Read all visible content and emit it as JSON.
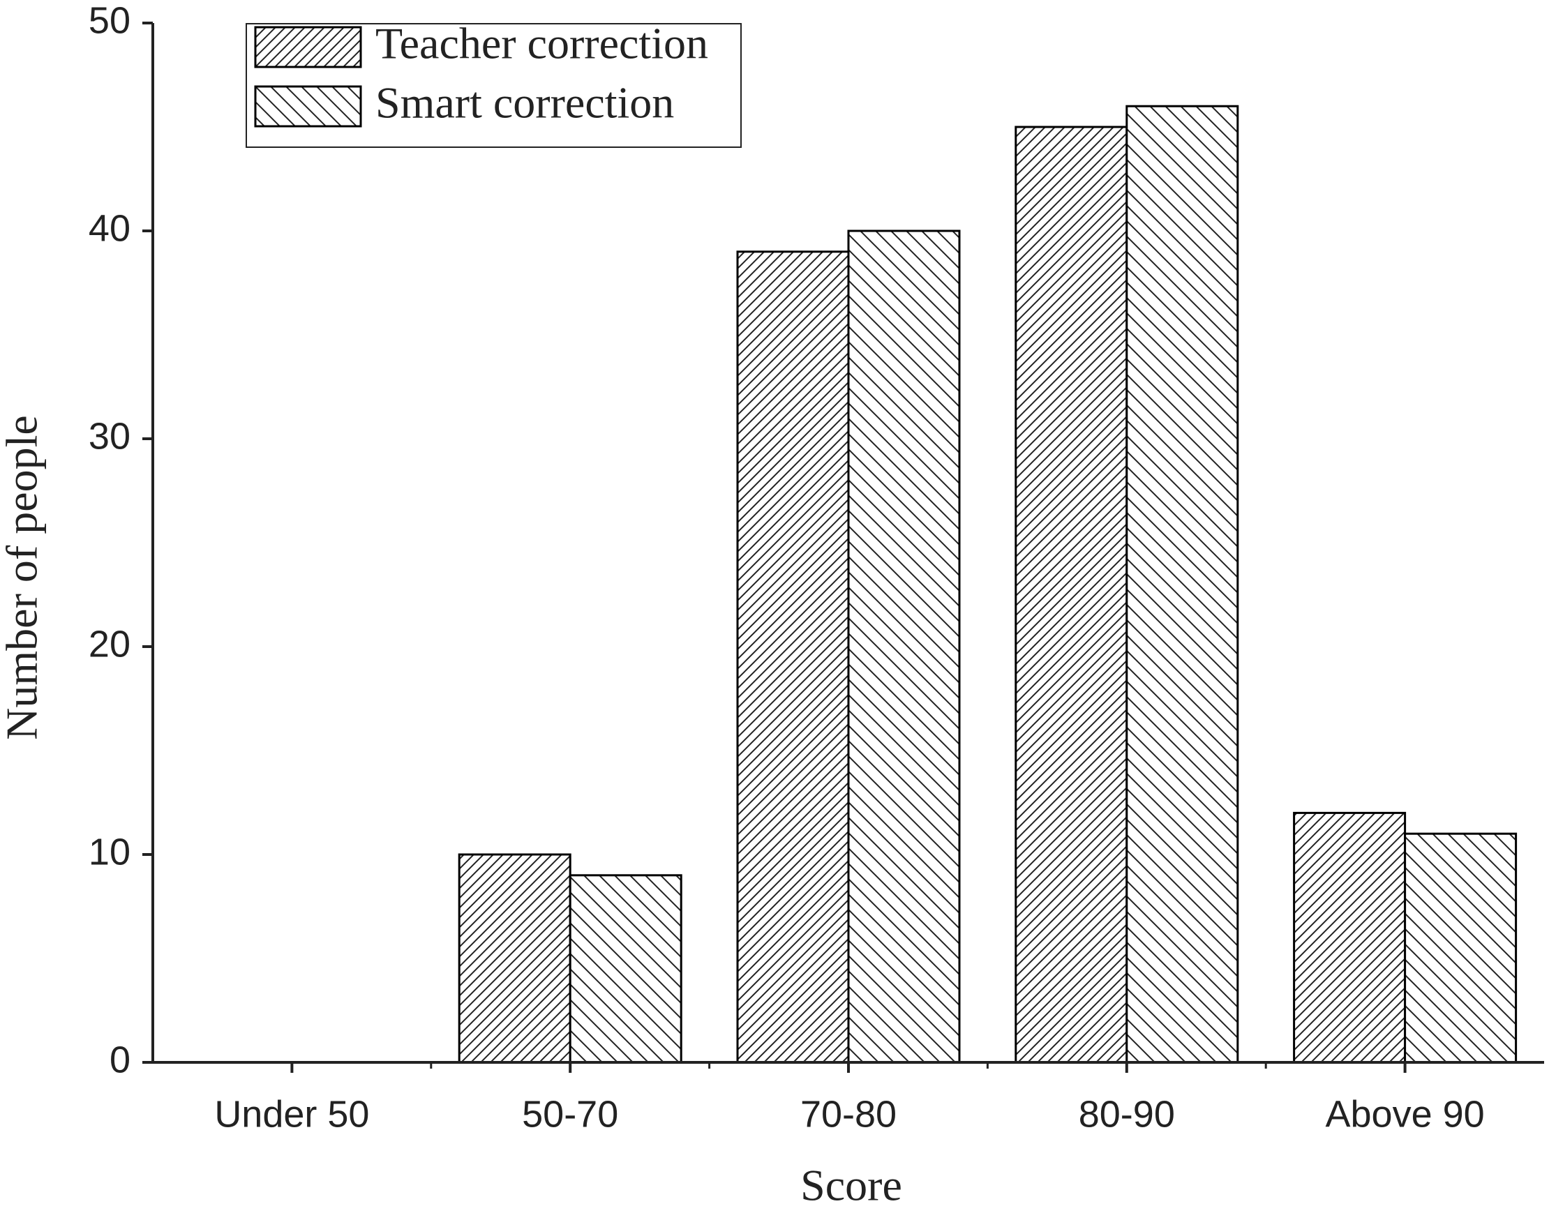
{
  "chart_data": {
    "type": "bar",
    "x_label": "Score",
    "y_label": "Number of people",
    "categories": [
      "Under 50",
      "50-70",
      "70-80",
      "80-90",
      "Above 90"
    ],
    "series": [
      {
        "name": "Teacher correction",
        "color": "#000000",
        "hatch": "forward-diagonal",
        "values": [
          0,
          10,
          39,
          45,
          12
        ]
      },
      {
        "name": "Smart correction",
        "color": "#000000",
        "hatch": "backward-diagonal",
        "values": [
          0,
          9,
          40,
          46,
          11
        ]
      }
    ],
    "ylim": [
      0,
      50
    ],
    "yticks": [
      0,
      10,
      20,
      30,
      40,
      50
    ],
    "grid": false,
    "legend": "upper left"
  }
}
